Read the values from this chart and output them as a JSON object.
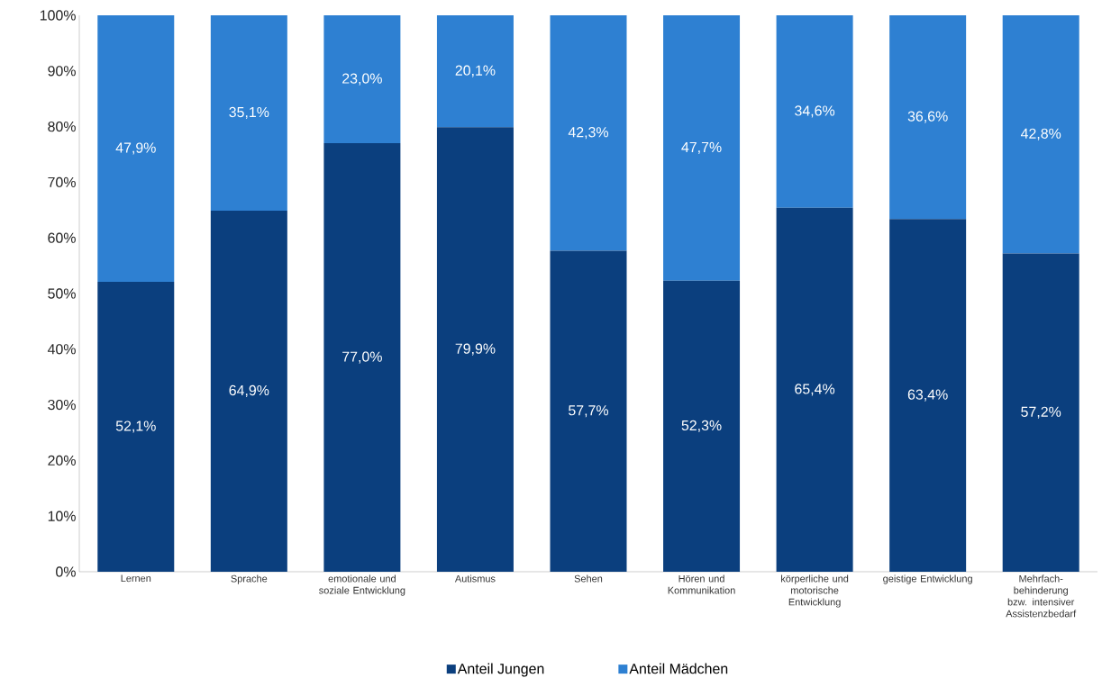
{
  "chart_data": {
    "type": "bar",
    "stacked": true,
    "categories": [
      "Lernen",
      "Sprache",
      "emotionale und soziale Entwicklung",
      "Autismus",
      "Sehen",
      "Hören und Kommunikation",
      "körperliche und motorische Entwicklung",
      "geistige Entwicklung",
      "Mehrfach-behinderung bzw. intensiver Assistenzbedarf"
    ],
    "series": [
      {
        "name": "Anteil Jungen",
        "color": "#0b3f7e",
        "values": [
          52.1,
          64.9,
          77.0,
          79.9,
          57.7,
          52.3,
          65.4,
          63.4,
          57.2
        ],
        "value_labels": [
          "52,1%",
          "64,9%",
          "77,0%",
          "79,9%",
          "57,7%",
          "52,3%",
          "65,4%",
          "63,4%",
          "57,2%"
        ]
      },
      {
        "name": "Anteil Mädchen",
        "color": "#2e80d2",
        "values": [
          47.9,
          35.1,
          23.0,
          20.1,
          42.3,
          47.7,
          34.6,
          36.6,
          42.8
        ],
        "value_labels": [
          "47,9%",
          "35,1%",
          "23,0%",
          "20,1%",
          "42,3%",
          "47,7%",
          "34,6%",
          "36,6%",
          "42,8%"
        ]
      }
    ],
    "ylim": [
      0,
      100
    ],
    "yticks": [
      {
        "value": 0,
        "label": "0%"
      },
      {
        "value": 10,
        "label": "10%"
      },
      {
        "value": 20,
        "label": "20%"
      },
      {
        "value": 30,
        "label": "30%"
      },
      {
        "value": 40,
        "label": "40%"
      },
      {
        "value": 50,
        "label": "50%"
      },
      {
        "value": 60,
        "label": "60%"
      },
      {
        "value": 70,
        "label": "70%"
      },
      {
        "value": 80,
        "label": "80%"
      },
      {
        "value": 90,
        "label": "90%"
      },
      {
        "value": 100,
        "label": "100%"
      }
    ],
    "grid": false,
    "legend": "bottom"
  }
}
